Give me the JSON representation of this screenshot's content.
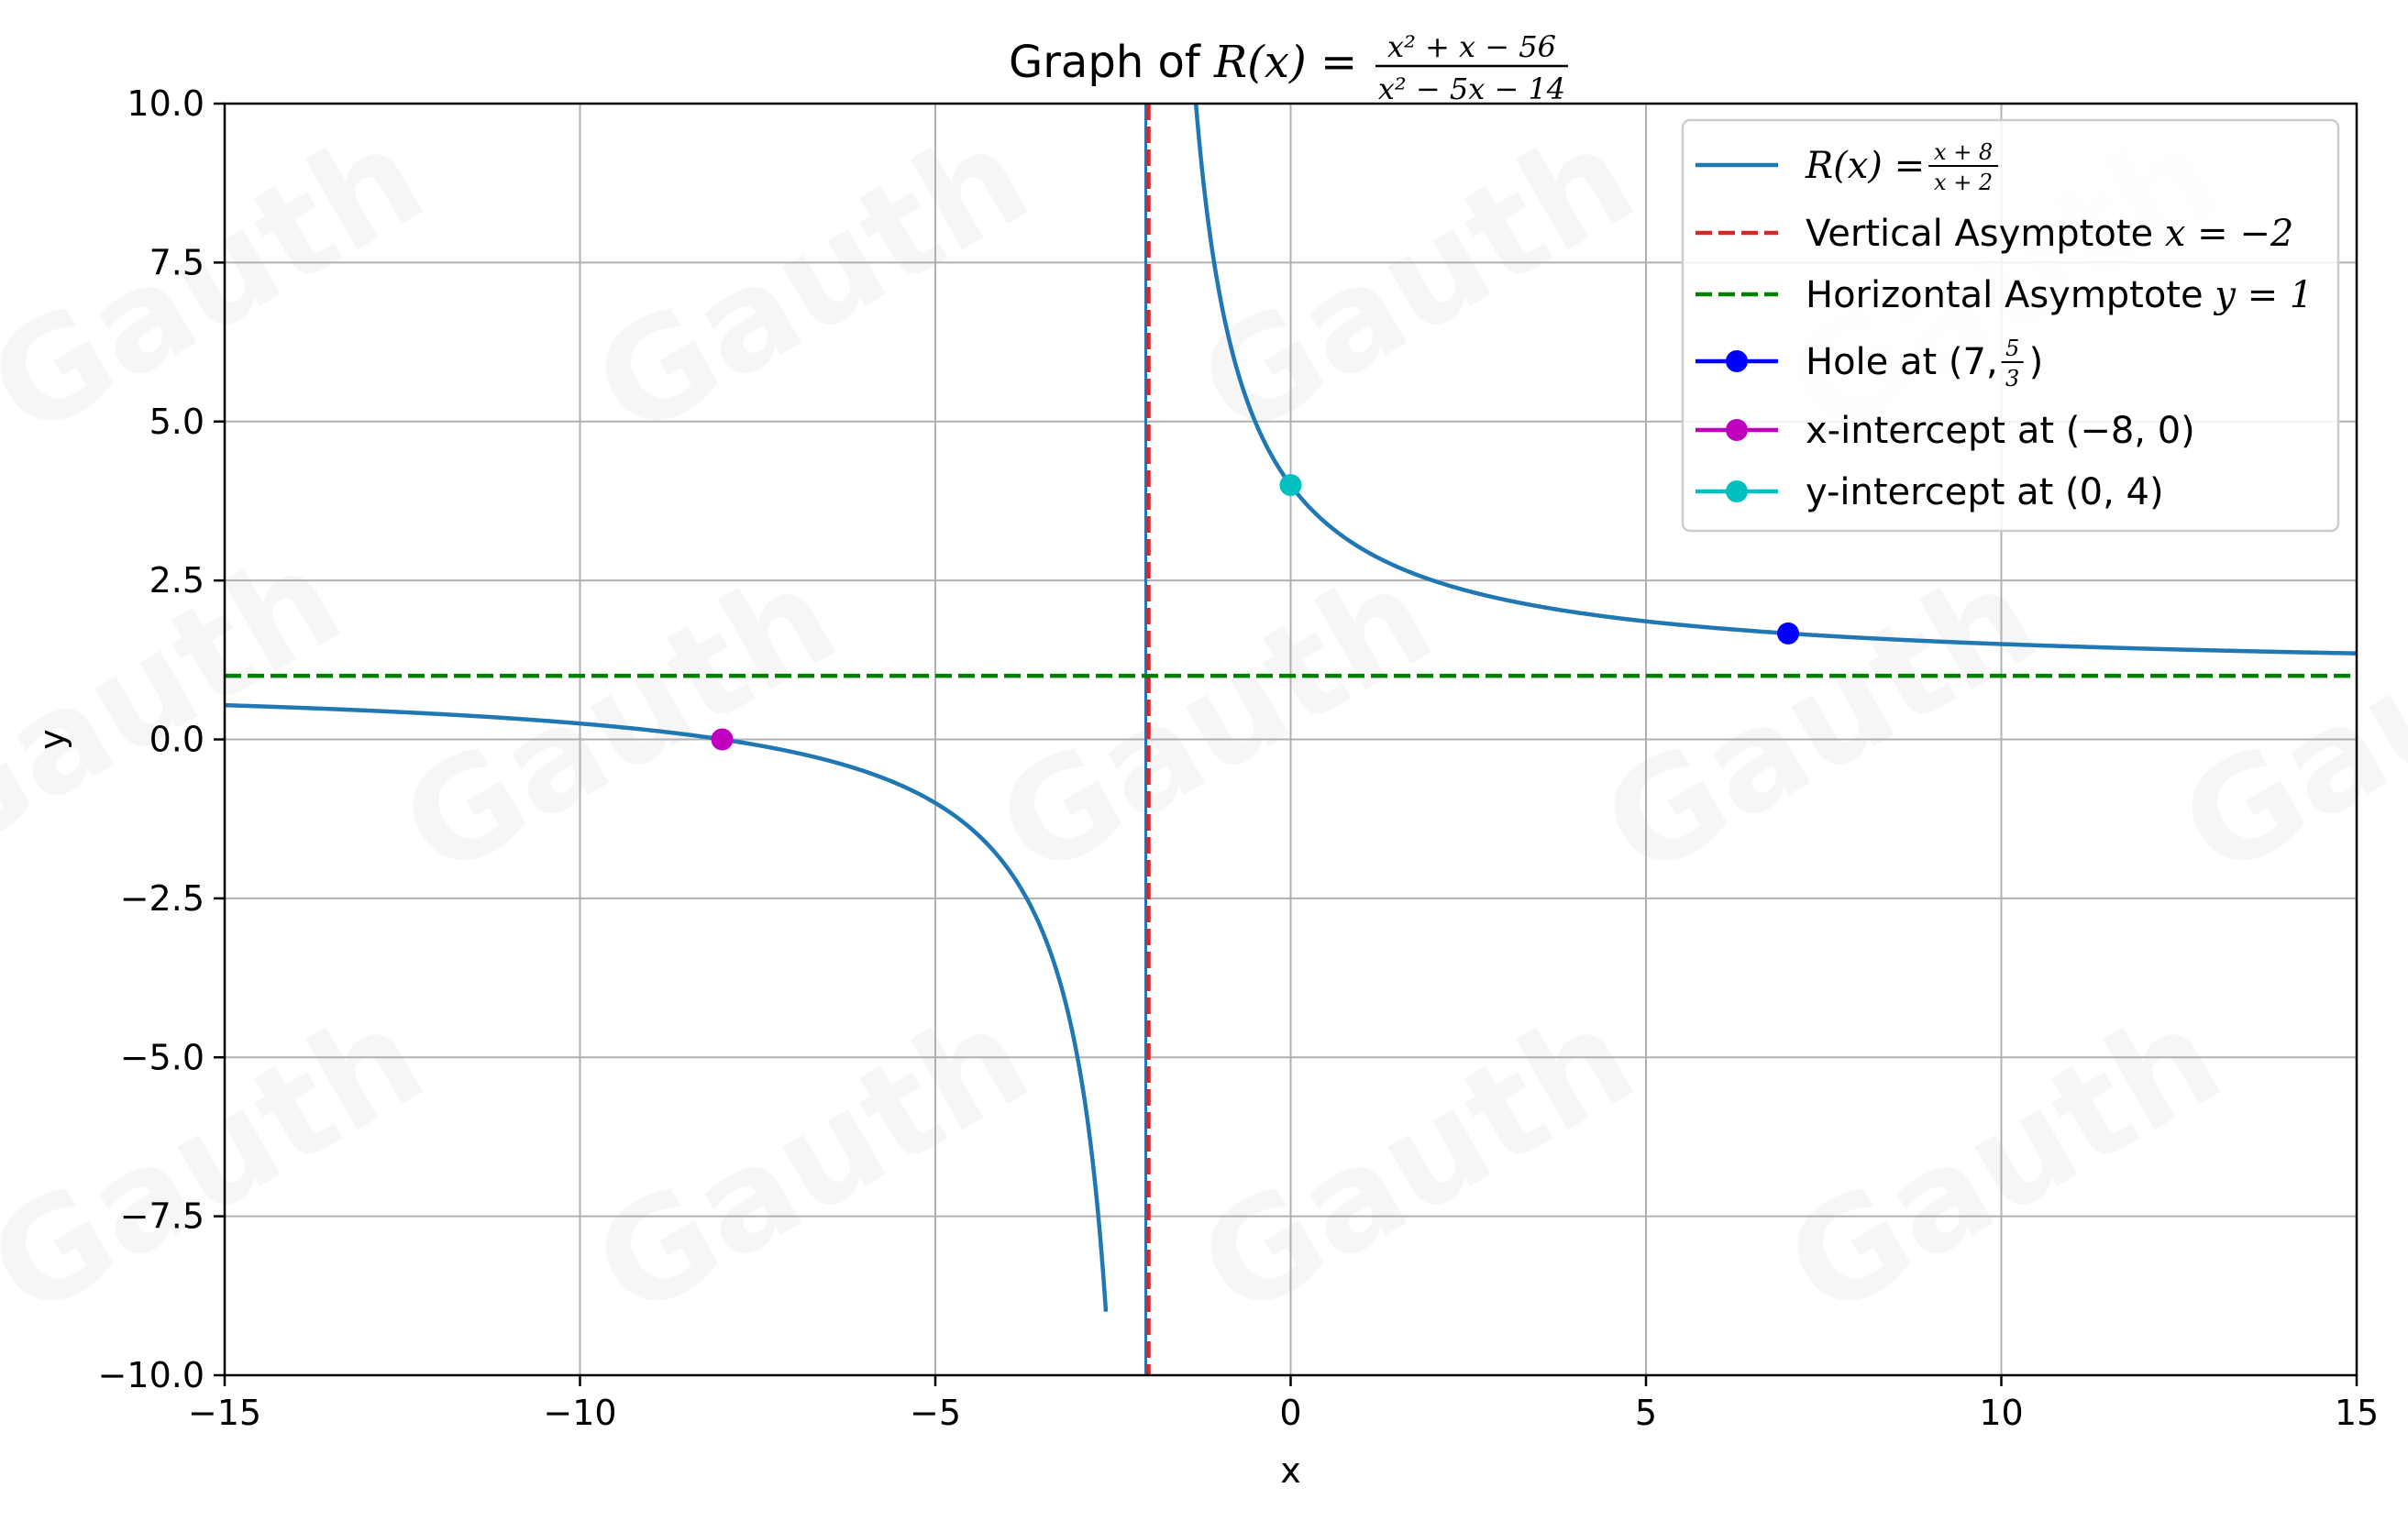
{
  "chart_data": {
    "type": "line",
    "title": {
      "prefix": "Graph of ",
      "func": "R(x) = ",
      "numerator": "x² + x − 56",
      "denominator": "x² − 5x − 14"
    },
    "xlabel": "x",
    "ylabel": "y",
    "xlim": [
      -15,
      15
    ],
    "ylim": [
      -10,
      10
    ],
    "xticks": [
      -15,
      -10,
      -5,
      0,
      5,
      10,
      15
    ],
    "xtick_labels": [
      "−15",
      "−10",
      "−5",
      "0",
      "5",
      "10",
      "15"
    ],
    "yticks": [
      -10,
      -7.5,
      -5,
      -2.5,
      0,
      2.5,
      5,
      7.5,
      10
    ],
    "ytick_labels": [
      "−10.0",
      "−7.5",
      "−5.0",
      "−2.5",
      "0.0",
      "2.5",
      "5.0",
      "7.5",
      "10.0"
    ],
    "grid": true,
    "legend_position": "top-right",
    "series": [
      {
        "name": "R(x) = (x + 8)/(x + 2)",
        "kind": "function",
        "numerator_shift": 8,
        "denominator_shift": 2,
        "color": "#1f77b4",
        "style": "solid"
      },
      {
        "name": "Vertical Asymptote x = −2",
        "kind": "vline",
        "x": -2,
        "color": "#d62728",
        "style": "dashed"
      },
      {
        "name": "Horizontal Asymptote y = 1",
        "kind": "hline",
        "y": 1,
        "color": "#008000",
        "style": "dashed"
      },
      {
        "name": "Hole at (7, 5/3)",
        "kind": "point",
        "x": 7,
        "y": 1.6667,
        "color": "#0000ff"
      },
      {
        "name": "x-intercept at (−8, 0)",
        "kind": "point",
        "x": -8,
        "y": 0,
        "color": "#bf00bf"
      },
      {
        "name": "y-intercept at (0, 4)",
        "kind": "point",
        "x": 0,
        "y": 4,
        "color": "#00bfbf"
      }
    ],
    "legend": [
      {
        "text": "R(x) = ",
        "frac_num": "x + 8",
        "frac_den": "x + 2"
      },
      {
        "text": "Vertical Asymptote ",
        "math": "x = −2"
      },
      {
        "text": "Horizontal Asymptote ",
        "math": "y = 1"
      },
      {
        "text": "Hole at (7, ",
        "frac_num": "5",
        "frac_den": "3",
        "suffix": ")"
      },
      {
        "text": "x-intercept at (−8, 0)"
      },
      {
        "text": "y-intercept at (0, 4)"
      }
    ]
  },
  "watermark": "Gauth"
}
